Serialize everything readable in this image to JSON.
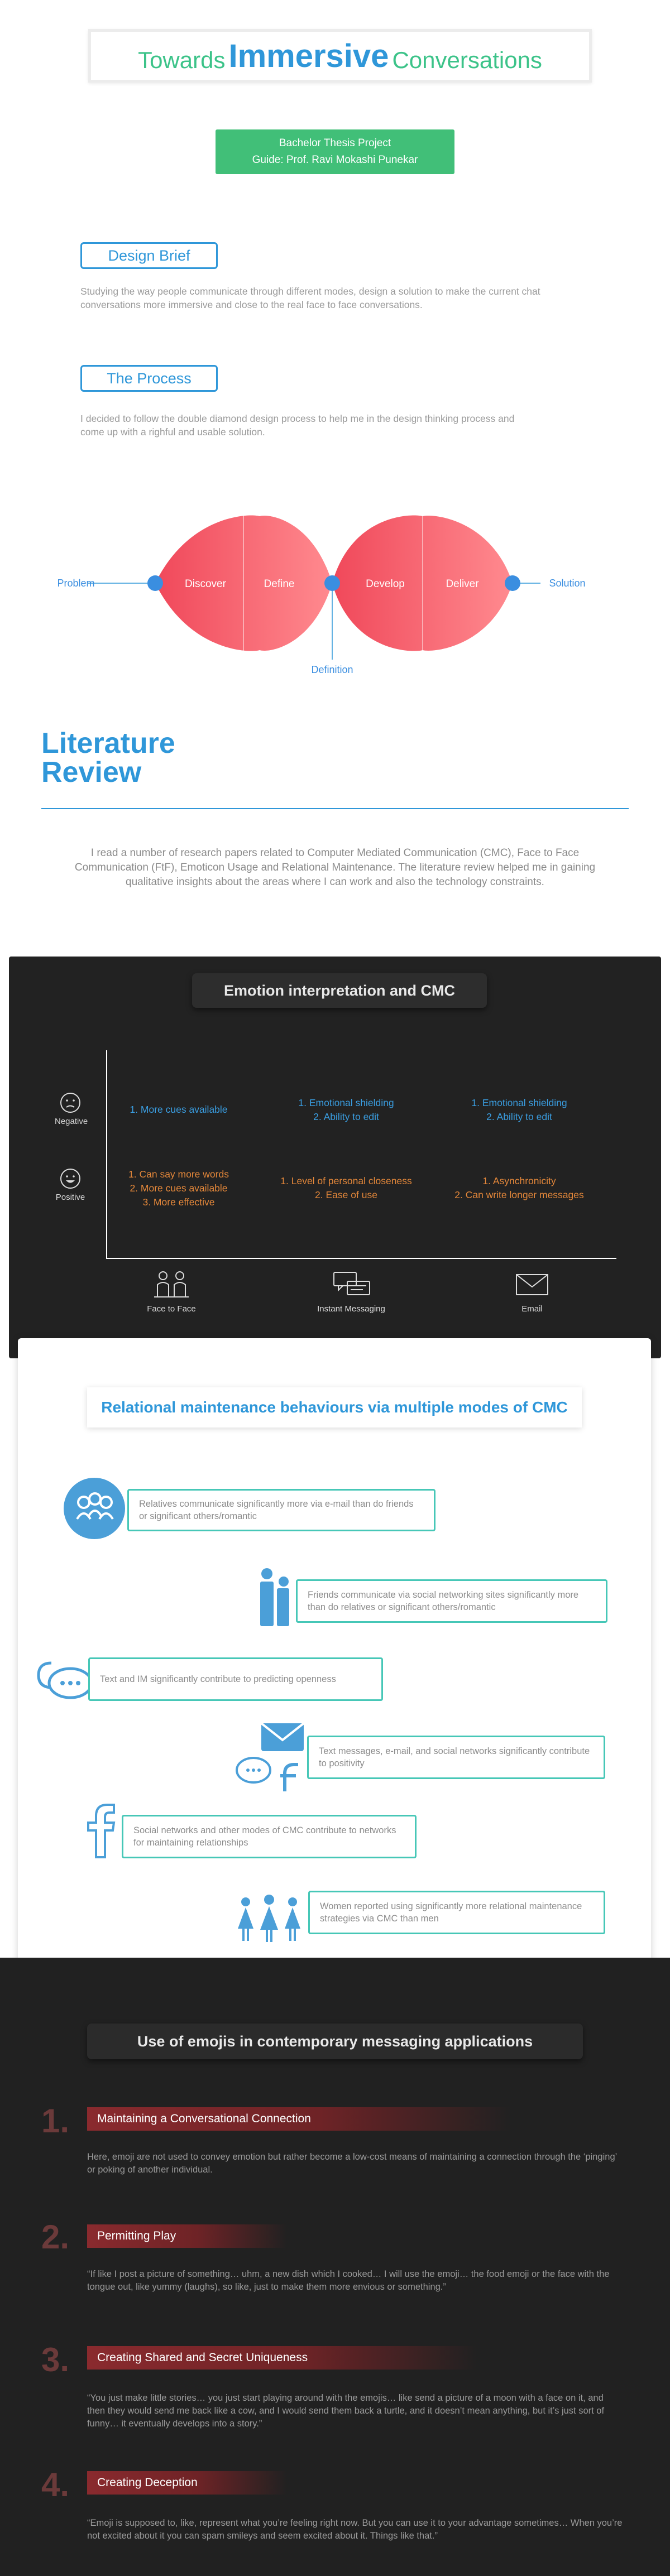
{
  "header": {
    "title_pre": "Towards",
    "title_main": "Immersive",
    "title_post": "Conversations",
    "tag_line1": "Bachelor Thesis Project",
    "tag_line2": "Guide: Prof. Ravi Mokashi Punekar"
  },
  "design_brief": {
    "label": "Design Brief",
    "text": "Studying the way people communicate through different modes, design a solution to make the current chat conversations more immersive and close to the real face to face conversations."
  },
  "process": {
    "label": "The Process",
    "text": "I decided to follow the double diamond design process to help me in the design thinking process and come up with a righful and usable solution."
  },
  "diamond": {
    "problem": "Problem",
    "solution": "Solution",
    "definition": "Definition",
    "phases": [
      "Discover",
      "Define",
      "Develop",
      "Deliver"
    ]
  },
  "literature": {
    "title_line1": "Literature",
    "title_line2": "Review",
    "text": "I read a number of research papers related to Computer Mediated Communication (CMC), Face to Face Communication (FtF), Emoticon Usage and Relational Maintenance. The literature review helped me in gaining qualitative insights about the areas where I can work and also the technology constraints."
  },
  "emotion": {
    "heading": "Emotion interpretation and CMC",
    "rows": [
      "Negative",
      "Positive"
    ],
    "columns": [
      "Face to Face",
      "Instant Messaging",
      "Email"
    ],
    "negative": [
      [
        "1. More cues available"
      ],
      [
        "1. Emotional shielding",
        "2. Ability to edit"
      ],
      [
        "1. Emotional shielding",
        "2. Ability to edit"
      ]
    ],
    "positive": [
      [
        "1. Can say more words",
        "2. More cues available",
        "3. More effective"
      ],
      [
        "1. Level of personal closeness",
        "2. Ease of use"
      ],
      [
        "1. Asynchronicity",
        "2. Can write longer messages"
      ]
    ]
  },
  "relational": {
    "heading": "Relational maintenance behaviours via multiple modes of CMC",
    "items": [
      "Relatives communicate significantly more via e-mail than do friends or significant others/romantic",
      "Friends communicate via social networking sites significantly more than do relatives or significant others/romantic",
      "Text and IM significantly contribute to predicting openness",
      "Text messages, e-mail, and social networks significantly contribute to positivity",
      "Social networks and other modes of CMC contribute to networks for maintaining relationships",
      "Women reported using significantly more relational maintenance strategies via CMC than men"
    ]
  },
  "emojis": {
    "heading": "Use of emojis in contemporary messaging applications",
    "items": [
      {
        "num": "1.",
        "title": "Maintaining a Conversational Connection",
        "text": "Here, emoji are not used to convey emotion but rather become a low-cost means of maintaining a connection through the ‘pinging’ or poking of another individual."
      },
      {
        "num": "2.",
        "title": "Permitting Play",
        "text": "“If like I post a picture of something… uhm, a new dish which I cooked… I will use the emoji… the food emoji or the face with the tongue out, like yummy (laughs), so like, just to make them more envious or something.”"
      },
      {
        "num": "3.",
        "title": "Creating Shared and Secret Uniqueness",
        "text": "“You just make little stories… you just start playing around with the emojis… like send a picture of a moon with a face on it, and then they would send me back like a cow, and I would send them back a turtle, and it doesn’t mean anything, but it’s just sort of funny… it eventually develops into a story.”"
      },
      {
        "num": "4.",
        "title": "Creating Deception",
        "text": "“Emoji is supposed to, like, represent what you’re feeling right now. But you can use it to your advantage sometimes… When you’re not excited about it you can spam smileys and seem excited about it. Things like that.”"
      }
    ]
  }
}
